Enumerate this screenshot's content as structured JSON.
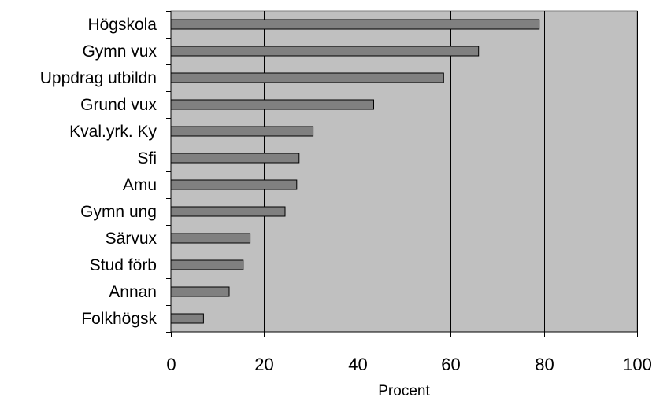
{
  "chart_data": {
    "type": "bar",
    "orientation": "horizontal",
    "categories": [
      "Högskola",
      "Gymn vux",
      "Uppdrag utbildn",
      "Grund vux",
      "Kval.yrk. Ky",
      "Sfi",
      "Amu",
      "Gymn ung",
      "Särvux",
      "Stud förb",
      "Annan",
      "Folkhögsk"
    ],
    "values": [
      79,
      66,
      58.5,
      43.5,
      30.5,
      27.5,
      27,
      24.5,
      17,
      15.5,
      12.5,
      7
    ],
    "title": "",
    "xlabel": "Procent",
    "ylabel": "",
    "xlim": [
      0,
      100
    ],
    "xticks": [
      0,
      20,
      40,
      60,
      80,
      100
    ],
    "xtick_labels": [
      "0",
      "20",
      "40",
      "60",
      "80",
      "100"
    ],
    "grid": "vertical",
    "legend": "none",
    "colors": {
      "plot_background": "#c0c0c0",
      "bar_fill": "#808080",
      "bar_stroke": "#000000",
      "grid": "#000000"
    }
  }
}
